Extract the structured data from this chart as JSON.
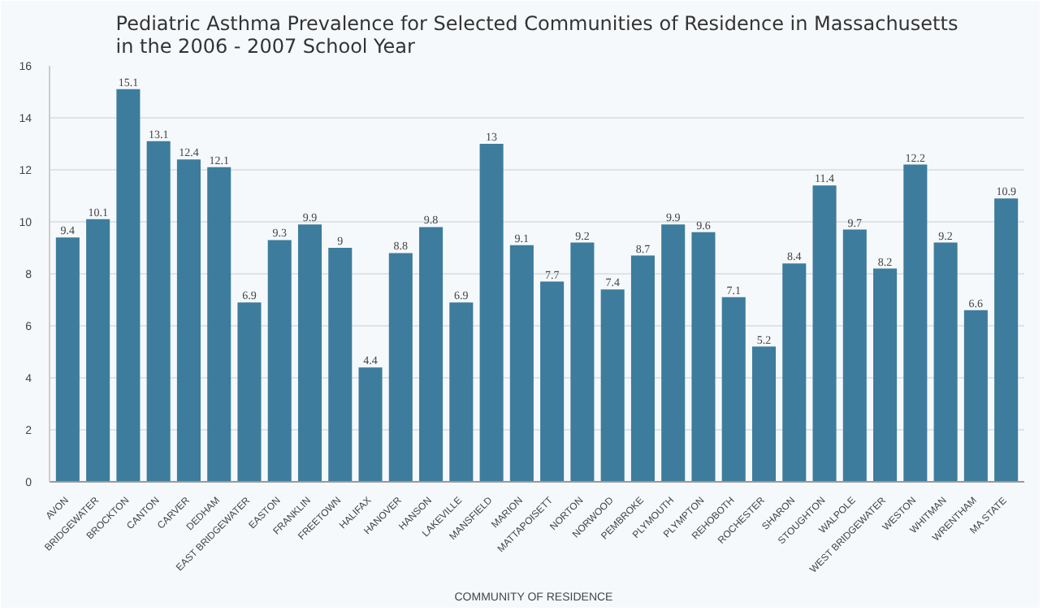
{
  "chart_data": {
    "type": "bar",
    "title": "Pediatric Asthma Prevalence for Selected Communities of Residence in Massachusetts\nin the 2006 - 2007 School Year",
    "xlabel": "COMMUNITY  OF  RESIDENCE",
    "categories": [
      "AVON",
      "BRIDGEWATER",
      "BROCKTON",
      "CANTON",
      "CARVER",
      "DEDHAM",
      "EAST BRIDGEWATER",
      "EASTON",
      "FRANKLIN",
      "FREETOWN",
      "HALIFAX",
      "HANOVER",
      "HANSON",
      "LAKEVILLE",
      "MANSFIELD",
      "MARION",
      "MATTAPOISETT",
      "NORTON",
      "NORWOOD",
      "PEMBROKE",
      "PLYMOUTH",
      "PLYMPTON",
      "REHOBOTH",
      "ROCHESTER",
      "SHARON",
      "STOUGHTON",
      "WALPOLE",
      "WEST BRIDGEWATER",
      "WESTON",
      "WHITMAN",
      "WRENTHAM",
      "MA STATE"
    ],
    "values": [
      9.4,
      10.1,
      15.1,
      13.1,
      12.4,
      12.1,
      6.9,
      9.3,
      9.9,
      9,
      4.4,
      8.8,
      9.8,
      6.9,
      13,
      9.1,
      7.7,
      9.2,
      7.4,
      8.7,
      9.9,
      9.6,
      7.1,
      5.2,
      8.4,
      11.4,
      9.7,
      8.2,
      12.2,
      9.2,
      6.6,
      10.9
    ],
    "color": "#3d7c9c",
    "ylim": [
      0,
      16
    ],
    "yticks": [
      0,
      2,
      4,
      6,
      8,
      10,
      12,
      14,
      16
    ],
    "grid": "y",
    "data_labels": true
  }
}
